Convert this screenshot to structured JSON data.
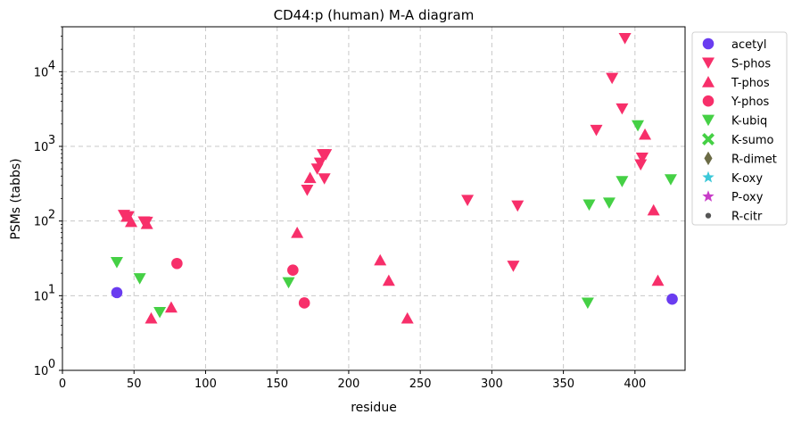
{
  "chart_data": {
    "type": "scatter",
    "title": "CD44:p (human) M-A diagram",
    "xlabel": "residue",
    "ylabel": "PSMs (tabbs)",
    "xlim": [
      0,
      435
    ],
    "ylim": [
      1,
      40000
    ],
    "yscale": "log",
    "xticks": [
      "0",
      "50",
      "100",
      "150",
      "200",
      "250",
      "300",
      "350",
      "400"
    ],
    "yticks": [
      "10^0",
      "10^1",
      "10^2",
      "10^3",
      "10^4"
    ],
    "grid": true,
    "legend_position": "outside-right",
    "series": [
      {
        "name": "acetyl",
        "marker": "circle",
        "color": "#6a3cf0",
        "points": [
          [
            38,
            11
          ],
          [
            426,
            9
          ]
        ]
      },
      {
        "name": "S-phos",
        "marker": "triangle-down",
        "color": "#f72f6a",
        "points": [
          [
            43,
            120
          ],
          [
            46,
            115
          ],
          [
            57,
            98
          ],
          [
            59,
            97
          ],
          [
            171,
            260
          ],
          [
            178,
            500
          ],
          [
            180,
            600
          ],
          [
            182,
            780
          ],
          [
            184,
            780
          ],
          [
            183,
            370
          ],
          [
            283,
            190
          ],
          [
            315,
            25
          ],
          [
            318,
            160
          ],
          [
            373,
            1650
          ],
          [
            384,
            8200
          ],
          [
            391,
            3200
          ],
          [
            393,
            28000
          ],
          [
            404,
            570
          ],
          [
            405,
            700
          ]
        ]
      },
      {
        "name": "T-phos",
        "marker": "triangle-up",
        "color": "#f72f6a",
        "points": [
          [
            45,
            115
          ],
          [
            48,
            98
          ],
          [
            59,
            92
          ],
          [
            62,
            5
          ],
          [
            76,
            7
          ],
          [
            164,
            70
          ],
          [
            173,
            380
          ],
          [
            222,
            30
          ],
          [
            228,
            16
          ],
          [
            241,
            5
          ],
          [
            407,
            1450
          ],
          [
            413,
            140
          ],
          [
            416,
            16
          ]
        ]
      },
      {
        "name": "Y-phos",
        "marker": "circle",
        "color": "#f72f6a",
        "points": [
          [
            80,
            27
          ],
          [
            161,
            22
          ],
          [
            169,
            8
          ]
        ]
      },
      {
        "name": "K-ubiq",
        "marker": "triangle-down",
        "color": "#45d045",
        "points": [
          [
            38,
            28
          ],
          [
            54,
            17
          ],
          [
            68,
            6
          ],
          [
            158,
            15
          ],
          [
            367,
            8
          ],
          [
            368,
            165
          ],
          [
            382,
            175
          ],
          [
            391,
            340
          ],
          [
            402,
            1900
          ],
          [
            425,
            360
          ]
        ]
      },
      {
        "name": "K-sumo",
        "marker": "x",
        "color": "#45d045",
        "points": []
      },
      {
        "name": "R-dimet",
        "marker": "diamond",
        "color": "#6b6b45",
        "points": []
      },
      {
        "name": "K-oxy",
        "marker": "star",
        "color": "#3cc8d8",
        "points": []
      },
      {
        "name": "P-oxy",
        "marker": "star",
        "color": "#c83cc8",
        "points": []
      },
      {
        "name": "R-citr",
        "marker": "dot",
        "color": "#555555",
        "points": []
      }
    ]
  }
}
